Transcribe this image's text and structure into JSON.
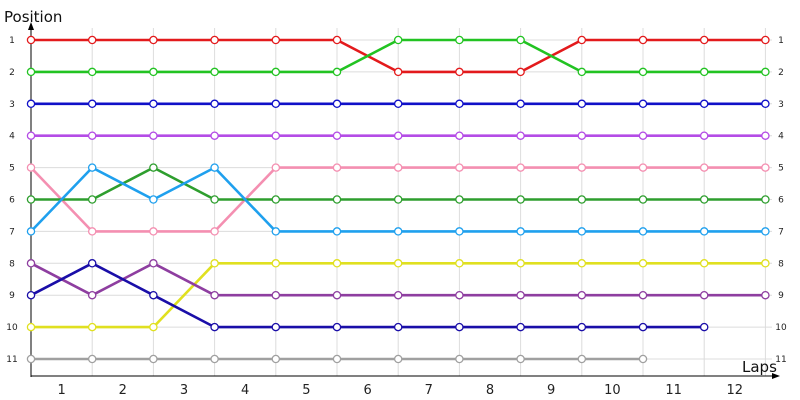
{
  "chart_data": {
    "type": "line",
    "ylabel": "Position",
    "xlabel": "Laps",
    "y_ticks": [
      "1",
      "2",
      "3",
      "4",
      "5",
      "6",
      "7",
      "8",
      "9",
      "10",
      "11"
    ],
    "x_ticks": [
      "1",
      "2",
      "3",
      "4",
      "5",
      "6",
      "7",
      "8",
      "9",
      "10",
      "11",
      "12"
    ],
    "grid": true,
    "x_range": [
      0,
      12
    ],
    "y_range": [
      1,
      11
    ],
    "series": [
      {
        "color": "#e31a1c",
        "x": [
          0,
          1,
          2,
          3,
          4,
          5,
          6,
          7,
          8,
          9,
          10,
          11,
          12
        ],
        "values": [
          1,
          1,
          1,
          1,
          1,
          1,
          2,
          2,
          2,
          1,
          1,
          1,
          1
        ]
      },
      {
        "color": "#22c322",
        "x": [
          0,
          1,
          2,
          3,
          4,
          5,
          6,
          7,
          8,
          9,
          10,
          11,
          12
        ],
        "values": [
          2,
          2,
          2,
          2,
          2,
          2,
          1,
          1,
          1,
          2,
          2,
          2,
          2
        ]
      },
      {
        "color": "#1010c8",
        "x": [
          0,
          1,
          2,
          3,
          4,
          5,
          6,
          7,
          8,
          9,
          10,
          11,
          12
        ],
        "values": [
          3,
          3,
          3,
          3,
          3,
          3,
          3,
          3,
          3,
          3,
          3,
          3,
          3
        ]
      },
      {
        "color": "#b44ce6",
        "x": [
          0,
          1,
          2,
          3,
          4,
          5,
          6,
          7,
          8,
          9,
          10,
          11,
          12
        ],
        "values": [
          4,
          4,
          4,
          4,
          4,
          4,
          4,
          4,
          4,
          4,
          4,
          4,
          4
        ]
      },
      {
        "color": "#f48fb1",
        "x": [
          0,
          1,
          2,
          3,
          4,
          5,
          6,
          7,
          8,
          9,
          10,
          11,
          12
        ],
        "values": [
          5,
          7,
          7,
          7,
          5,
          5,
          5,
          5,
          5,
          5,
          5,
          5,
          5
        ]
      },
      {
        "color": "#2e9e2e",
        "x": [
          0,
          1,
          2,
          3,
          4,
          5,
          6,
          7,
          8,
          9,
          10,
          11,
          12
        ],
        "values": [
          6,
          6,
          5,
          6,
          6,
          6,
          6,
          6,
          6,
          6,
          6,
          6,
          6
        ]
      },
      {
        "color": "#1fa0ee",
        "x": [
          0,
          1,
          2,
          3,
          4,
          5,
          6,
          7,
          8,
          9,
          10,
          11,
          12
        ],
        "values": [
          7,
          5,
          6,
          5,
          7,
          7,
          7,
          7,
          7,
          7,
          7,
          7,
          7
        ]
      },
      {
        "color": "#e0e020",
        "x": [
          0,
          1,
          2,
          3,
          4,
          5,
          6,
          7,
          8,
          9,
          10,
          11,
          12
        ],
        "values": [
          10,
          10,
          10,
          8,
          8,
          8,
          8,
          8,
          8,
          8,
          8,
          8,
          8
        ]
      },
      {
        "color": "#8e3ea0",
        "x": [
          0,
          1,
          2,
          3,
          4,
          5,
          6,
          7,
          8,
          9,
          10,
          11,
          12
        ],
        "values": [
          8,
          9,
          8,
          9,
          9,
          9,
          9,
          9,
          9,
          9,
          9,
          9,
          9
        ]
      },
      {
        "color": "#1a0ea8",
        "x": [
          0,
          1,
          2,
          3,
          4,
          5,
          6,
          7,
          8,
          9,
          10,
          11
        ],
        "values": [
          9,
          8,
          9,
          10,
          10,
          10,
          10,
          10,
          10,
          10,
          10,
          10
        ]
      },
      {
        "color": "#a0a0a0",
        "x": [
          0,
          1,
          2,
          3,
          4,
          5,
          6,
          7,
          8,
          9,
          10
        ],
        "values": [
          11,
          11,
          11,
          11,
          11,
          11,
          11,
          11,
          11,
          11,
          11
        ]
      }
    ]
  }
}
